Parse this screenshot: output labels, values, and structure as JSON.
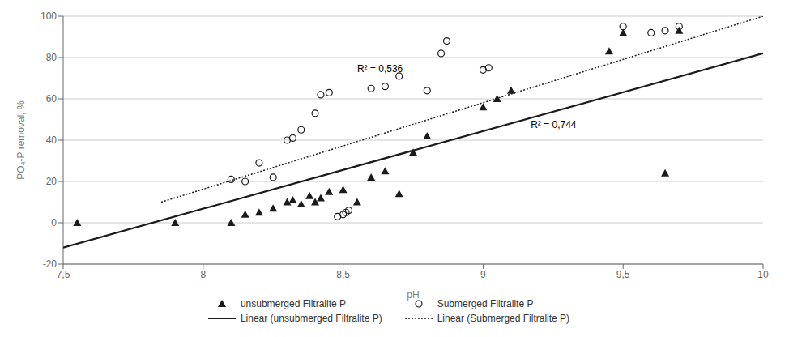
{
  "chart_data": {
    "type": "scatter",
    "xlabel": "pH",
    "ylabel": "PO₄-P removal, %",
    "xlim": [
      7.5,
      10.0
    ],
    "ylim": [
      -20,
      100
    ],
    "xticks": [
      {
        "value": 7.5,
        "label": "7,5"
      },
      8,
      {
        "value": 8.5,
        "label": "8,5"
      },
      9,
      {
        "value": 9.5,
        "label": "9,5"
      },
      10
    ],
    "yticks": [
      -20,
      0,
      20,
      40,
      60,
      80,
      100
    ],
    "grid": "y",
    "legend": "bottom",
    "series": [
      {
        "name": "unsubmerged Filtralite  P",
        "type": "scatter",
        "marker": "triangle",
        "color": "#1a1a1a",
        "x": [
          7.55,
          7.9,
          8.1,
          8.15,
          8.2,
          8.25,
          8.3,
          8.32,
          8.35,
          8.38,
          8.4,
          8.42,
          8.45,
          8.5,
          8.55,
          8.6,
          8.65,
          8.7,
          8.75,
          8.8,
          9.0,
          9.05,
          9.1,
          9.45,
          9.5,
          9.65,
          9.7
        ],
        "y": [
          0,
          0,
          0,
          4,
          5,
          7,
          10,
          11,
          9,
          13,
          10,
          12,
          15,
          16,
          10,
          22,
          25,
          14,
          34,
          42,
          56,
          60,
          64,
          83,
          92,
          24,
          93
        ]
      },
      {
        "name": "Submerged Filtralite  P",
        "type": "scatter",
        "marker": "open_circle",
        "color": "#1a1a1a",
        "x": [
          8.1,
          8.15,
          8.2,
          8.25,
          8.3,
          8.32,
          8.35,
          8.4,
          8.42,
          8.45,
          8.48,
          8.5,
          8.51,
          8.52,
          8.6,
          8.65,
          8.7,
          8.8,
          8.85,
          8.87,
          9.0,
          9.02,
          9.5,
          9.6,
          9.65,
          9.7
        ],
        "y": [
          21,
          20,
          29,
          22,
          40,
          41,
          45,
          53,
          62,
          63,
          3,
          4,
          5,
          6,
          65,
          66,
          71,
          64,
          82,
          88,
          74,
          75,
          95,
          92,
          93,
          95
        ]
      },
      {
        "name": "Linear (unsubmerged Filtralite P)",
        "type": "line",
        "line_style": "solid",
        "color": "#1a1a1a",
        "x": [
          7.5,
          10.0
        ],
        "y": [
          -12.0,
          82.0
        ]
      },
      {
        "name": "Linear (Submerged Filtralite P)",
        "type": "line",
        "line_style": "dotted",
        "color": "#1a1a1a",
        "x": [
          7.85,
          10.0
        ],
        "y": [
          10.0,
          100.0
        ]
      }
    ],
    "annotations": [
      {
        "text": "R² = 0,536",
        "x": 8.55,
        "y": 73
      },
      {
        "text": "R² = 0,744",
        "x": 9.17,
        "y": 46
      }
    ]
  }
}
